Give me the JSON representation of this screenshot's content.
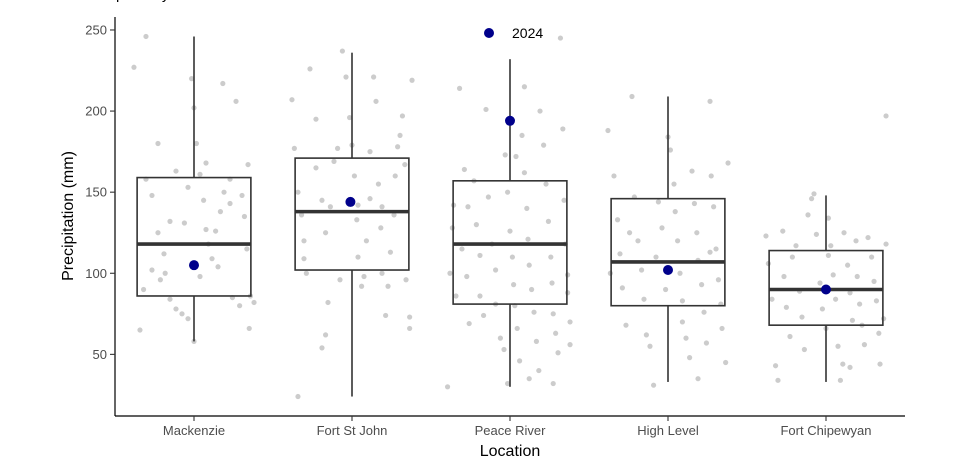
{
  "chart_data": {
    "type": "box",
    "title": "",
    "title_partial": "p         y",
    "xlabel": "Location",
    "ylabel": "Precipitation (mm)",
    "ylim": [
      12,
      258
    ],
    "yticks": [
      50,
      100,
      150,
      200,
      250
    ],
    "categories": [
      "Mackenzie",
      "Fort St John",
      "Peace River",
      "High Level",
      "Fort Chipewyan"
    ],
    "legend": {
      "position": "top-center",
      "label": "2024",
      "color": "#00008b"
    },
    "colors": {
      "box_line": "#333333",
      "points": "#cccccc",
      "highlight": "#00008b",
      "axis": "#000000"
    },
    "boxes": [
      {
        "category": "Mackenzie",
        "lower_whisker": 58,
        "q1": 86,
        "median": 118,
        "q3": 159,
        "upper_whisker": 246
      },
      {
        "category": "Fort St John",
        "lower_whisker": 24,
        "q1": 102,
        "median": 138,
        "q3": 171,
        "upper_whisker": 236
      },
      {
        "category": "Peace River",
        "lower_whisker": 30,
        "q1": 81,
        "median": 118,
        "q3": 157,
        "upper_whisker": 232
      },
      {
        "category": "High Level",
        "lower_whisker": 33,
        "q1": 80,
        "median": 107,
        "q3": 146,
        "upper_whisker": 209
      },
      {
        "category": "Fort Chipewyan",
        "lower_whisker": 33,
        "q1": 68,
        "median": 90,
        "q3": 114,
        "upper_whisker": 148
      }
    ],
    "highlight_2024": [
      {
        "category": "Mackenzie",
        "value": 105
      },
      {
        "category": "Fort St John",
        "value": 144
      },
      {
        "category": "Peace River",
        "value": 194
      },
      {
        "category": "High Level",
        "value": 102
      },
      {
        "category": "Fort Chipewyan",
        "value": 90
      }
    ],
    "jitter_points": [
      {
        "category": "Mackenzie",
        "values": [
          [
            -0.5,
            227
          ],
          [
            -0.4,
            246
          ],
          [
            -0.4,
            158
          ],
          [
            -0.3,
            180
          ],
          [
            -0.35,
            148
          ],
          [
            -0.3,
            125
          ],
          [
            -0.35,
            102
          ],
          [
            -0.25,
            112
          ],
          [
            -0.28,
            96
          ],
          [
            -0.2,
            132
          ],
          [
            -0.2,
            84
          ],
          [
            -0.15,
            78
          ],
          [
            -0.1,
            75
          ],
          [
            -0.05,
            72
          ],
          [
            -0.05,
            153
          ],
          [
            -0.02,
            220
          ],
          [
            0.0,
            202
          ],
          [
            0.02,
            180
          ],
          [
            0.05,
            161
          ],
          [
            0.1,
            168
          ],
          [
            0.08,
            145
          ],
          [
            0.1,
            127
          ],
          [
            0.12,
            118
          ],
          [
            0.05,
            98
          ],
          [
            0.15,
            109
          ],
          [
            0.2,
            104
          ],
          [
            0.22,
            138
          ],
          [
            0.25,
            150
          ],
          [
            0.24,
            217
          ],
          [
            0.3,
            158
          ],
          [
            0.3,
            143
          ],
          [
            0.32,
            85
          ],
          [
            0.35,
            206
          ],
          [
            0.38,
            80
          ],
          [
            0.4,
            148
          ],
          [
            0.42,
            135
          ],
          [
            0.45,
            167
          ],
          [
            0.44,
            115
          ],
          [
            0.47,
            86
          ],
          [
            0.5,
            82
          ],
          [
            0.46,
            66
          ],
          [
            -0.45,
            65
          ],
          [
            -0.42,
            90
          ],
          [
            -0.15,
            163
          ],
          [
            0.0,
            58
          ],
          [
            -0.08,
            131
          ],
          [
            0.18,
            126
          ],
          [
            -0.24,
            100
          ]
        ]
      },
      {
        "category": "Fort St John",
        "values": [
          [
            -0.5,
            207
          ],
          [
            -0.48,
            177
          ],
          [
            -0.45,
            150
          ],
          [
            -0.42,
            136
          ],
          [
            -0.4,
            120
          ],
          [
            -0.4,
            109
          ],
          [
            -0.38,
            100
          ],
          [
            -0.35,
            226
          ],
          [
            -0.3,
            195
          ],
          [
            -0.3,
            165
          ],
          [
            -0.25,
            145
          ],
          [
            -0.22,
            125
          ],
          [
            -0.2,
            82
          ],
          [
            -0.25,
            54
          ],
          [
            -0.22,
            62
          ],
          [
            -0.18,
            141
          ],
          [
            -0.15,
            169
          ],
          [
            -0.12,
            177
          ],
          [
            -0.08,
            237
          ],
          [
            -0.05,
            221
          ],
          [
            -0.02,
            196
          ],
          [
            0.0,
            179
          ],
          [
            0.02,
            160
          ],
          [
            0.04,
            133
          ],
          [
            0.05,
            110
          ],
          [
            0.08,
            92
          ],
          [
            0.1,
            98
          ],
          [
            0.12,
            120
          ],
          [
            0.15,
            146
          ],
          [
            0.15,
            175
          ],
          [
            0.18,
            221
          ],
          [
            0.2,
            206
          ],
          [
            0.22,
            155
          ],
          [
            0.24,
            128
          ],
          [
            0.25,
            100
          ],
          [
            0.28,
            74
          ],
          [
            0.3,
            92
          ],
          [
            0.32,
            113
          ],
          [
            0.35,
            136
          ],
          [
            0.36,
            160
          ],
          [
            0.38,
            178
          ],
          [
            0.4,
            185
          ],
          [
            0.42,
            197
          ],
          [
            0.44,
            167
          ],
          [
            0.45,
            96
          ],
          [
            0.48,
            73
          ],
          [
            0.48,
            66
          ],
          [
            0.5,
            219
          ],
          [
            -0.45,
            24
          ],
          [
            0.05,
            142
          ],
          [
            -0.1,
            96
          ],
          [
            0.25,
            141
          ]
        ]
      },
      {
        "category": "Peace River",
        "values": [
          [
            -0.52,
            30
          ],
          [
            -0.5,
            100
          ],
          [
            -0.48,
            128
          ],
          [
            -0.47,
            142
          ],
          [
            -0.45,
            86
          ],
          [
            -0.42,
            214
          ],
          [
            -0.4,
            115
          ],
          [
            -0.38,
            164
          ],
          [
            -0.36,
            98
          ],
          [
            -0.34,
            69
          ],
          [
            -0.3,
            157
          ],
          [
            -0.28,
            130
          ],
          [
            -0.25,
            111
          ],
          [
            -0.25,
            86
          ],
          [
            -0.22,
            74
          ],
          [
            -0.2,
            201
          ],
          [
            -0.18,
            147
          ],
          [
            -0.15,
            118
          ],
          [
            -0.12,
            102
          ],
          [
            -0.12,
            81
          ],
          [
            -0.08,
            60
          ],
          [
            -0.05,
            53
          ],
          [
            -0.04,
            173
          ],
          [
            -0.02,
            150
          ],
          [
            0.0,
            126
          ],
          [
            0.02,
            110
          ],
          [
            0.03,
            93
          ],
          [
            0.04,
            80
          ],
          [
            0.06,
            66
          ],
          [
            0.08,
            46
          ],
          [
            0.1,
            185
          ],
          [
            0.12,
            162
          ],
          [
            0.14,
            140
          ],
          [
            0.15,
            121
          ],
          [
            0.16,
            105
          ],
          [
            0.18,
            90
          ],
          [
            0.2,
            76
          ],
          [
            0.22,
            58
          ],
          [
            0.24,
            40
          ],
          [
            0.25,
            200
          ],
          [
            0.28,
            179
          ],
          [
            0.3,
            155
          ],
          [
            0.32,
            132
          ],
          [
            0.34,
            110
          ],
          [
            0.35,
            94
          ],
          [
            0.36,
            75
          ],
          [
            0.38,
            63
          ],
          [
            0.4,
            51
          ],
          [
            0.42,
            245
          ],
          [
            0.44,
            189
          ],
          [
            0.45,
            145
          ],
          [
            0.46,
            118
          ],
          [
            0.48,
            99
          ],
          [
            0.48,
            88
          ],
          [
            0.5,
            70
          ],
          [
            0.5,
            56
          ],
          [
            -0.02,
            32
          ],
          [
            0.16,
            35
          ],
          [
            -0.35,
            141
          ],
          [
            0.05,
            172
          ],
          [
            0.12,
            215
          ],
          [
            0.36,
            32
          ]
        ]
      },
      {
        "category": "High Level",
        "values": [
          [
            -0.5,
            188
          ],
          [
            -0.45,
            160
          ],
          [
            -0.42,
            133
          ],
          [
            -0.4,
            112
          ],
          [
            -0.38,
            91
          ],
          [
            -0.35,
            68
          ],
          [
            -0.3,
            209
          ],
          [
            -0.28,
            147
          ],
          [
            -0.25,
            120
          ],
          [
            -0.22,
            102
          ],
          [
            -0.2,
            84
          ],
          [
            -0.18,
            62
          ],
          [
            -0.15,
            55
          ],
          [
            -0.12,
            31
          ],
          [
            -0.1,
            110
          ],
          [
            -0.05,
            128
          ],
          [
            -0.02,
            90
          ],
          [
            0.0,
            184
          ],
          [
            0.02,
            176
          ],
          [
            0.05,
            155
          ],
          [
            0.06,
            138
          ],
          [
            0.08,
            120
          ],
          [
            0.1,
            100
          ],
          [
            0.12,
            83
          ],
          [
            0.12,
            70
          ],
          [
            0.15,
            60
          ],
          [
            0.18,
            48
          ],
          [
            0.2,
            163
          ],
          [
            0.22,
            143
          ],
          [
            0.24,
            125
          ],
          [
            0.25,
            108
          ],
          [
            0.28,
            93
          ],
          [
            0.3,
            76
          ],
          [
            0.32,
            57
          ],
          [
            0.35,
            206
          ],
          [
            0.36,
            160
          ],
          [
            0.38,
            141
          ],
          [
            0.4,
            115
          ],
          [
            0.42,
            96
          ],
          [
            0.44,
            81
          ],
          [
            0.45,
            66
          ],
          [
            0.48,
            45
          ],
          [
            0.5,
            168
          ],
          [
            -0.32,
            125
          ],
          [
            -0.08,
            144
          ],
          [
            0.25,
            35
          ],
          [
            -0.48,
            100
          ],
          [
            0.35,
            113
          ]
        ]
      },
      {
        "category": "Fort Chipewyan",
        "values": [
          [
            -0.5,
            123
          ],
          [
            -0.48,
            106
          ],
          [
            -0.45,
            84
          ],
          [
            -0.42,
            43
          ],
          [
            -0.4,
            34
          ],
          [
            -0.35,
            98
          ],
          [
            -0.33,
            79
          ],
          [
            -0.3,
            61
          ],
          [
            -0.28,
            110
          ],
          [
            -0.25,
            117
          ],
          [
            -0.22,
            89
          ],
          [
            -0.2,
            73
          ],
          [
            -0.18,
            53
          ],
          [
            -0.15,
            136
          ],
          [
            -0.12,
            146
          ],
          [
            -0.1,
            149
          ],
          [
            -0.08,
            124
          ],
          [
            -0.05,
            94
          ],
          [
            -0.03,
            78
          ],
          [
            0.0,
            66
          ],
          [
            0.02,
            134
          ],
          [
            0.04,
            117
          ],
          [
            0.06,
            99
          ],
          [
            0.08,
            84
          ],
          [
            0.1,
            55
          ],
          [
            0.12,
            34
          ],
          [
            0.14,
            44
          ],
          [
            0.15,
            125
          ],
          [
            0.18,
            105
          ],
          [
            0.2,
            88
          ],
          [
            0.22,
            71
          ],
          [
            0.25,
            120
          ],
          [
            0.26,
            98
          ],
          [
            0.28,
            81
          ],
          [
            0.3,
            68
          ],
          [
            0.32,
            56
          ],
          [
            0.35,
            122
          ],
          [
            0.38,
            110
          ],
          [
            0.4,
            95
          ],
          [
            0.42,
            83
          ],
          [
            0.44,
            63
          ],
          [
            0.45,
            44
          ],
          [
            0.48,
            72
          ],
          [
            0.5,
            197
          ],
          [
            0.5,
            118
          ],
          [
            -0.36,
            126
          ],
          [
            0.02,
            111
          ],
          [
            0.2,
            42
          ]
        ]
      }
    ]
  }
}
